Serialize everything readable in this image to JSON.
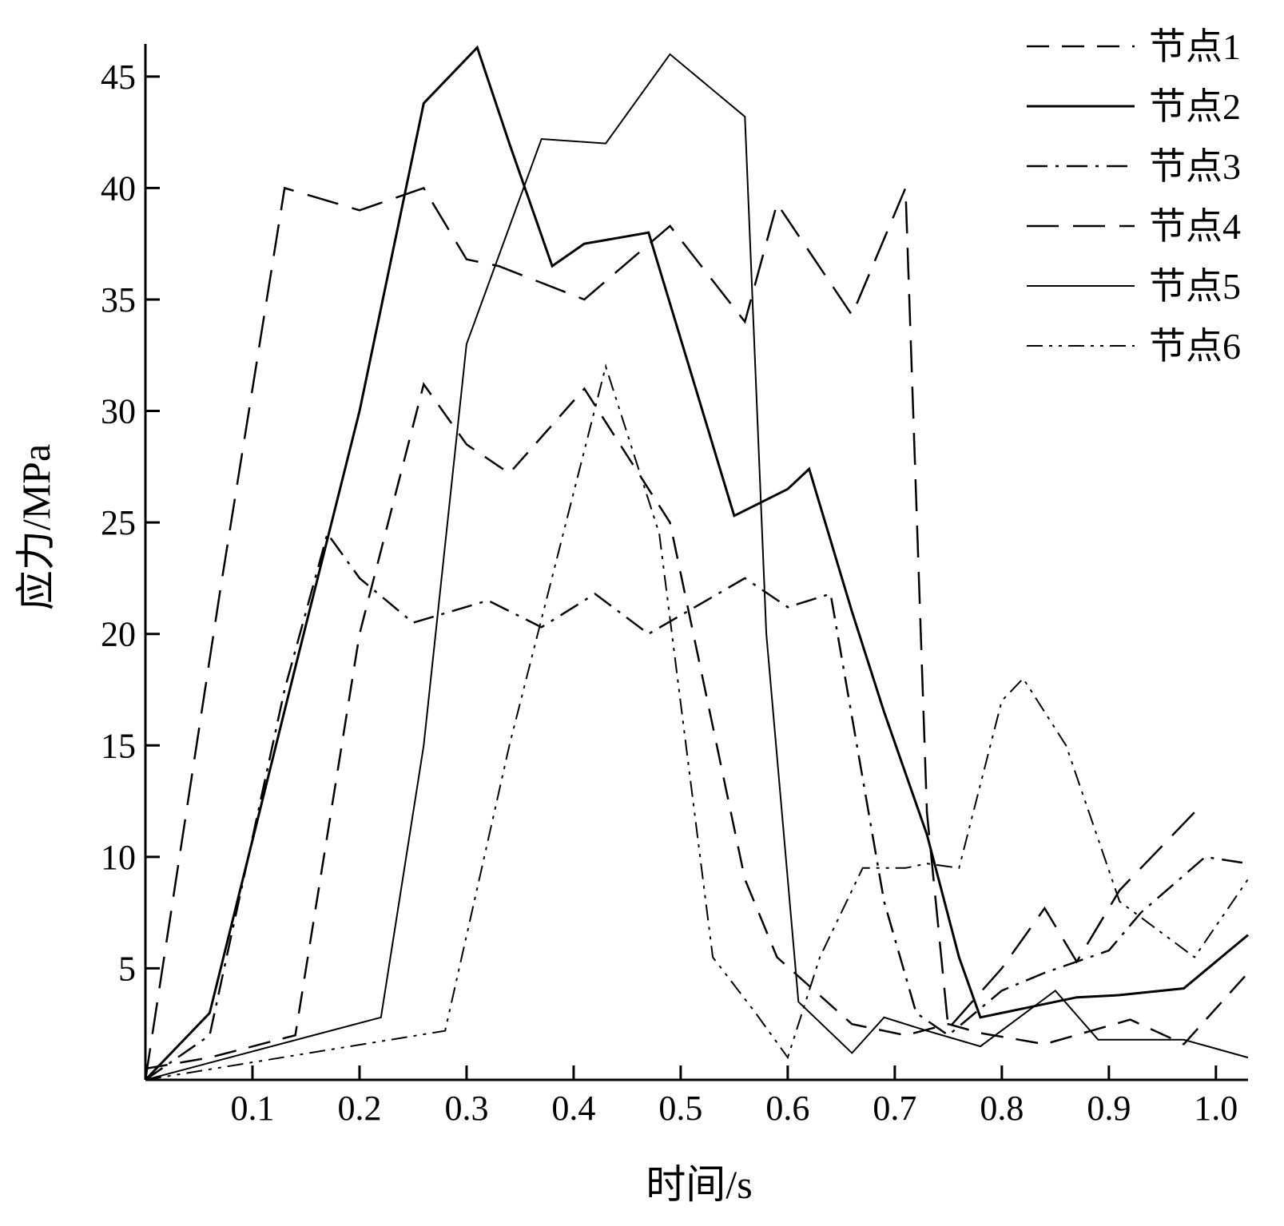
{
  "chart_data": {
    "type": "line",
    "title": "",
    "xlabel": "时间/s",
    "ylabel": "应力/MPa",
    "xlim": [
      0,
      1.03
    ],
    "ylim": [
      0,
      47
    ],
    "xticks": [
      "0.1",
      "0.2",
      "0.3",
      "0.4",
      "0.5",
      "0.6",
      "0.7",
      "0.8",
      "0.9",
      "1.0"
    ],
    "yticks": [
      "5",
      "10",
      "15",
      "20",
      "25",
      "30",
      "35",
      "40",
      "45"
    ],
    "grid": false,
    "legend_position": "top-right",
    "series": [
      {
        "name": "节点1",
        "dash": "28,16",
        "width": 2.5,
        "x": [
          0,
          0.06,
          0.14,
          0.2,
          0.26,
          0.3,
          0.34,
          0.41,
          0.49,
          0.56,
          0.59,
          0.66,
          0.71,
          0.75,
          0.78,
          0.84,
          0.92,
          0.97,
          1.03
        ],
        "y": [
          0.5,
          1.0,
          2.0,
          20.0,
          31.2,
          28.5,
          27.2,
          31.0,
          25.0,
          9.0,
          5.5,
          2.5,
          2.0,
          2.5,
          2.1,
          1.6,
          2.7,
          1.6,
          4.8
        ]
      },
      {
        "name": "节点2",
        "dash": "",
        "width": 3,
        "x": [
          0,
          0.06,
          0.14,
          0.2,
          0.26,
          0.31,
          0.34,
          0.38,
          0.41,
          0.47,
          0.55,
          0.6,
          0.62,
          0.66,
          0.69,
          0.73,
          0.76,
          0.78,
          0.82,
          0.87,
          0.91,
          0.97,
          1.03
        ],
        "y": [
          0,
          3.0,
          18.5,
          30.0,
          43.8,
          46.3,
          42.0,
          36.5,
          37.5,
          38.0,
          25.3,
          26.5,
          27.4,
          21.0,
          16.5,
          11.0,
          5.5,
          2.8,
          3.2,
          3.7,
          3.8,
          4.1,
          6.5
        ]
      },
      {
        "name": "节点3",
        "dash": "26,10,4,10",
        "width": 2.5,
        "x": [
          0,
          0.06,
          0.13,
          0.17,
          0.2,
          0.25,
          0.32,
          0.37,
          0.42,
          0.47,
          0.56,
          0.6,
          0.64,
          0.69,
          0.72,
          0.75,
          0.8,
          0.84,
          0.9,
          0.93,
          0.99,
          1.03
        ],
        "y": [
          0,
          2.0,
          17.5,
          24.5,
          22.5,
          20.5,
          21.5,
          20.3,
          21.8,
          20.0,
          22.5,
          21.2,
          21.8,
          8.0,
          3.0,
          2.0,
          4.0,
          4.8,
          5.8,
          7.5,
          10.0,
          9.7
        ]
      },
      {
        "name": "节点4",
        "dash": "40,18",
        "width": 2.5,
        "x": [
          0,
          0.07,
          0.13,
          0.2,
          0.26,
          0.3,
          0.33,
          0.41,
          0.49,
          0.56,
          0.59,
          0.66,
          0.71,
          0.73,
          0.75,
          0.8,
          0.84,
          0.87,
          0.91,
          0.98
        ],
        "y": [
          0,
          22.0,
          40.0,
          39.0,
          40.0,
          36.8,
          36.5,
          35.0,
          38.3,
          34.0,
          39.3,
          34.3,
          40.0,
          12.0,
          2.3,
          5.0,
          7.7,
          5.3,
          8.5,
          12.0
        ]
      },
      {
        "name": "节点5",
        "dash": "",
        "width": 2,
        "x": [
          0,
          0.22,
          0.26,
          0.3,
          0.37,
          0.43,
          0.49,
          0.56,
          0.58,
          0.61,
          0.66,
          0.69,
          0.73,
          0.78,
          0.85,
          0.89,
          0.93,
          0.97,
          1.03
        ],
        "y": [
          0,
          2.8,
          15.0,
          33.0,
          42.2,
          42.0,
          46.0,
          43.2,
          20.0,
          3.5,
          1.2,
          2.8,
          2.2,
          1.5,
          4.0,
          1.8,
          1.8,
          1.8,
          1.0
        ]
      },
      {
        "name": "节点6",
        "dash": "20,8,4,8,4,8",
        "width": 2,
        "x": [
          0,
          0.28,
          0.34,
          0.43,
          0.48,
          0.53,
          0.57,
          0.6,
          0.63,
          0.67,
          0.71,
          0.73,
          0.76,
          0.8,
          0.82,
          0.86,
          0.91,
          0.98,
          1.03
        ],
        "y": [
          0,
          2.2,
          15.0,
          32.0,
          24.5,
          5.5,
          3.0,
          1.0,
          5.5,
          9.5,
          9.5,
          9.7,
          9.5,
          17.0,
          18.0,
          15.0,
          8.0,
          5.5,
          9.0
        ]
      }
    ]
  }
}
